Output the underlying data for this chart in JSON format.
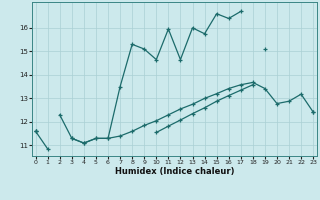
{
  "xlabel": "Humidex (Indice chaleur)",
  "bg_color": "#cce9ec",
  "grid_color": "#aad0d4",
  "line_color": "#1c6b6b",
  "xlim": [
    -0.3,
    23.3
  ],
  "ylim": [
    10.55,
    17.1
  ],
  "yticks": [
    11,
    12,
    13,
    14,
    15,
    16
  ],
  "xticks": [
    0,
    1,
    2,
    3,
    4,
    5,
    6,
    7,
    8,
    9,
    10,
    11,
    12,
    13,
    14,
    15,
    16,
    17,
    18,
    19,
    20,
    21,
    22,
    23
  ],
  "curves": [
    [
      11.6,
      null,
      12.3,
      11.3,
      11.1,
      11.3,
      11.3,
      13.5,
      15.3,
      15.1,
      14.65,
      15.95,
      14.65,
      16.0,
      15.75,
      16.6,
      16.4,
      16.7,
      null,
      15.1,
      null,
      null,
      null,
      null
    ],
    [
      11.6,
      null,
      null,
      11.3,
      11.1,
      11.3,
      11.3,
      11.4,
      11.6,
      11.85,
      12.05,
      12.3,
      12.55,
      12.75,
      13.0,
      13.2,
      13.42,
      13.58,
      13.68,
      13.42,
      12.78,
      12.88,
      13.18,
      12.42
    ],
    [
      11.6,
      10.85,
      null,
      null,
      null,
      null,
      null,
      null,
      null,
      null,
      11.55,
      11.82,
      12.08,
      12.35,
      12.6,
      12.88,
      13.12,
      13.35,
      13.58,
      null,
      null,
      null,
      null,
      12.42
    ],
    [
      11.6,
      null,
      12.3,
      11.3,
      11.1,
      11.3,
      11.3,
      13.5,
      15.3,
      15.1,
      14.65,
      15.95,
      14.65,
      16.0,
      15.75,
      16.6,
      16.4,
      16.7,
      null,
      15.1,
      null,
      null,
      null,
      null
    ]
  ],
  "lw": 0.9,
  "ms": 3.5
}
